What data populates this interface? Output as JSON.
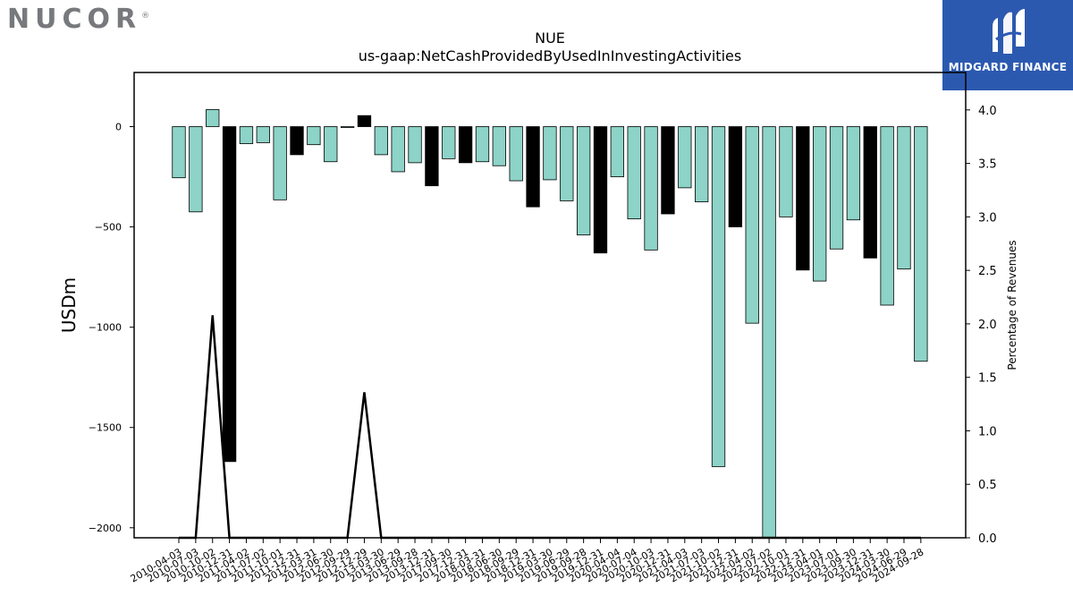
{
  "brand": {
    "name": "NUCOR",
    "mark": "®"
  },
  "partner": {
    "name": "MIDGARD FINANCE",
    "logo_icon": "stylized-m-logo-icon",
    "bg_color": "#2c59b0"
  },
  "chart_data": {
    "type": "bar",
    "title": "NUE",
    "subtitle": "us-gaap:NetCashProvidedByUsedInInvestingActivities",
    "ylabel": "USDm",
    "y2label": "Percentage of Revenues",
    "ylim": [
      -2050,
      270
    ],
    "y2lim": [
      0,
      4.35
    ],
    "yticks": [
      0,
      -500,
      -1000,
      -1500,
      -2000
    ],
    "y2ticks": [
      0.0,
      0.5,
      1.0,
      1.5,
      2.0,
      2.5,
      3.0,
      3.5,
      4.0
    ],
    "grid": false,
    "legend": "none",
    "colors": {
      "q1_q3": "#8dd3c7",
      "q4": "#000000",
      "edge": "#000000",
      "line": "#000000"
    },
    "categories": [
      "2010-04-03",
      "2010-07-03",
      "2010-10-02",
      "2010-12-31",
      "2011-04-02",
      "2011-07-02",
      "2011-10-01",
      "2011-12-31",
      "2012-03-31",
      "2012-06-30",
      "2012-09-29",
      "2012-12-29",
      "2013-03-30",
      "2013-06-29",
      "2013-09-28",
      "2013-12-31",
      "2017-09-30",
      "2017-12-31",
      "2018-03-31",
      "2018-06-30",
      "2018-09-29",
      "2018-12-31",
      "2019-03-30",
      "2019-06-29",
      "2019-09-28",
      "2019-12-31",
      "2020-04-04",
      "2020-07-04",
      "2020-10-03",
      "2020-12-31",
      "2021-04-03",
      "2021-07-03",
      "2021-10-02",
      "2021-12-31",
      "2022-04-02",
      "2022-07-02",
      "2022-10-01",
      "2022-12-31",
      "2023-04-01",
      "2023-07-01",
      "2023-09-30",
      "2023-12-31",
      "2024-03-30",
      "2024-06-29",
      "2024-09-28"
    ],
    "values": [
      -255,
      -425,
      85,
      -1670,
      -85,
      -80,
      -365,
      -140,
      -90,
      -175,
      -3,
      55,
      -140,
      -225,
      -180,
      -295,
      -160,
      -180,
      -175,
      -195,
      -270,
      -400,
      -265,
      -370,
      -540,
      -630,
      -250,
      -460,
      -615,
      -435,
      -305,
      -375,
      -1695,
      -500,
      -980,
      -2050,
      -450,
      -715,
      -770,
      -610,
      -465,
      -655,
      -890,
      -710,
      -1170
    ],
    "quarter_ends": [
      false,
      false,
      false,
      true,
      false,
      false,
      false,
      true,
      false,
      false,
      false,
      true,
      false,
      false,
      false,
      true,
      false,
      true,
      false,
      false,
      false,
      true,
      false,
      false,
      false,
      true,
      false,
      false,
      false,
      true,
      false,
      false,
      false,
      true,
      false,
      false,
      false,
      true,
      false,
      false,
      false,
      true,
      false,
      false,
      false
    ],
    "pct_of_revenues": [
      0,
      0,
      2.08,
      0,
      0,
      0,
      0,
      0,
      0,
      0,
      0,
      1.36,
      0,
      0,
      0,
      0,
      0,
      0,
      0,
      0,
      0,
      0,
      0,
      0,
      0,
      0,
      0,
      0,
      0,
      0,
      0,
      0,
      0,
      0,
      0,
      0,
      0,
      0,
      0,
      0,
      0,
      0,
      0,
      0,
      0
    ]
  }
}
